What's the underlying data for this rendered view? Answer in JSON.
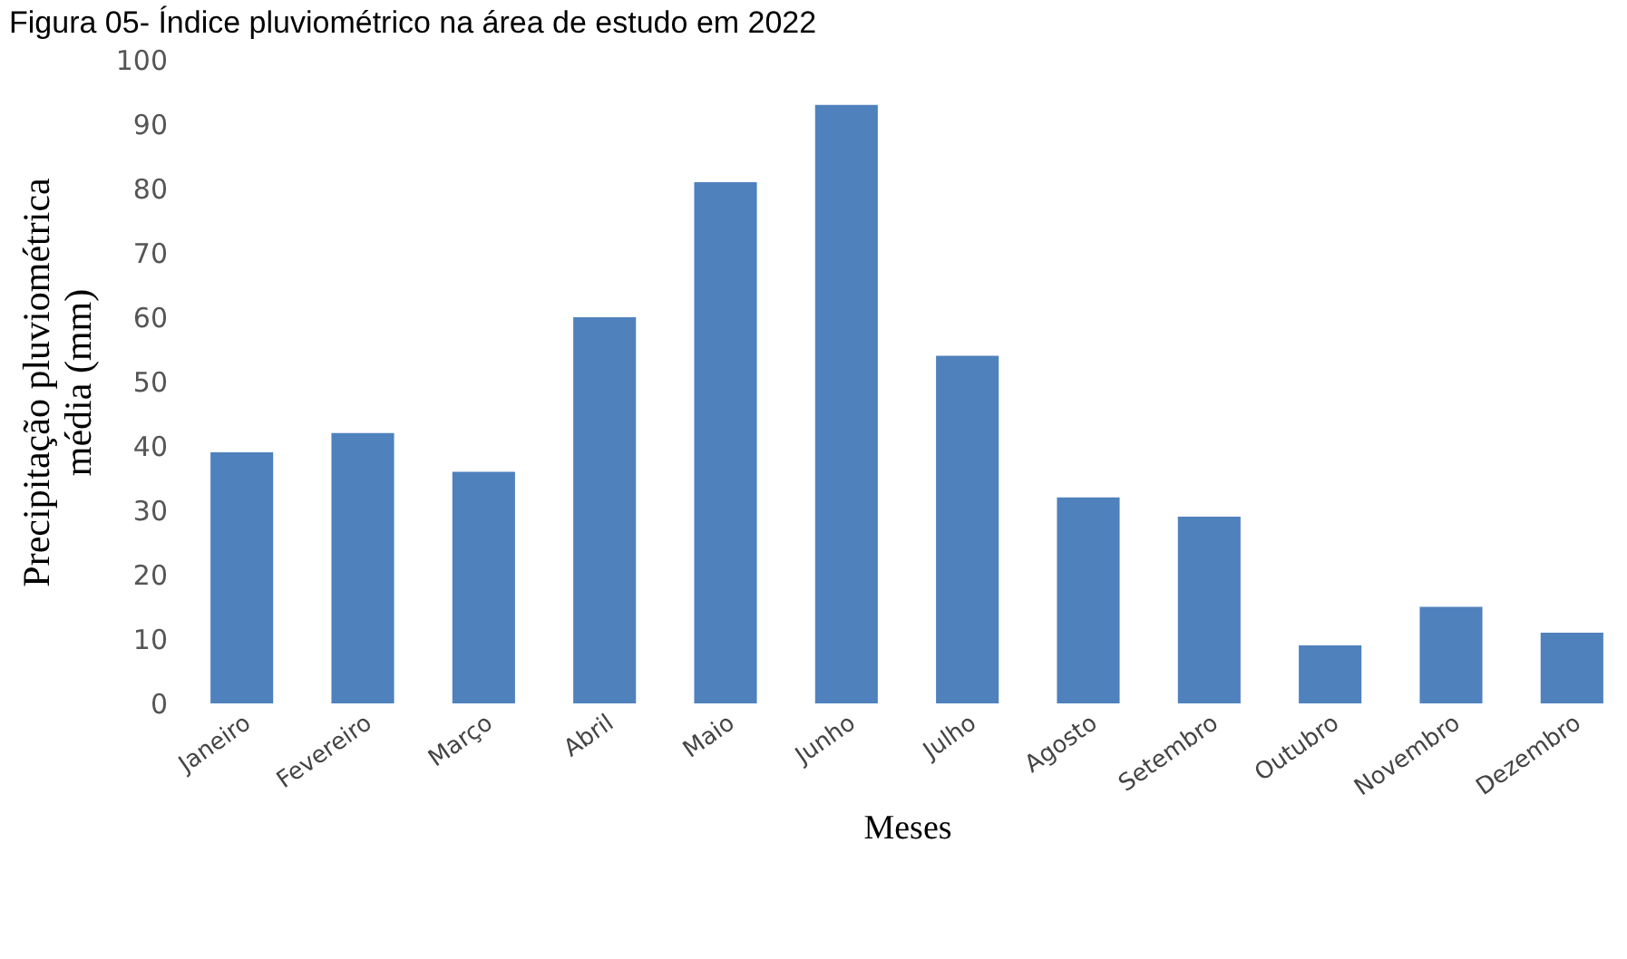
{
  "chart_data": {
    "type": "bar",
    "title": "Figura 05- Índice pluviométrico na área de estudo em 2022",
    "xlabel": "Meses",
    "ylabel": "Precipitação pluviométrica\nmédia  (mm)",
    "categories": [
      "Janeiro",
      "Fevereiro",
      "Março",
      "Abril",
      "Maio",
      "Junho",
      "Julho",
      "Agosto",
      "Setembro",
      "Outubro",
      "Novembro",
      "Dezembro"
    ],
    "values": [
      39,
      42,
      36,
      60,
      81,
      93,
      54,
      32,
      29,
      9,
      15,
      11
    ],
    "color": "#4f81bd",
    "ylim": [
      0,
      100
    ],
    "yticks": [
      0,
      10,
      20,
      30,
      40,
      50,
      60,
      70,
      80,
      90,
      100
    ],
    "grid": false
  }
}
